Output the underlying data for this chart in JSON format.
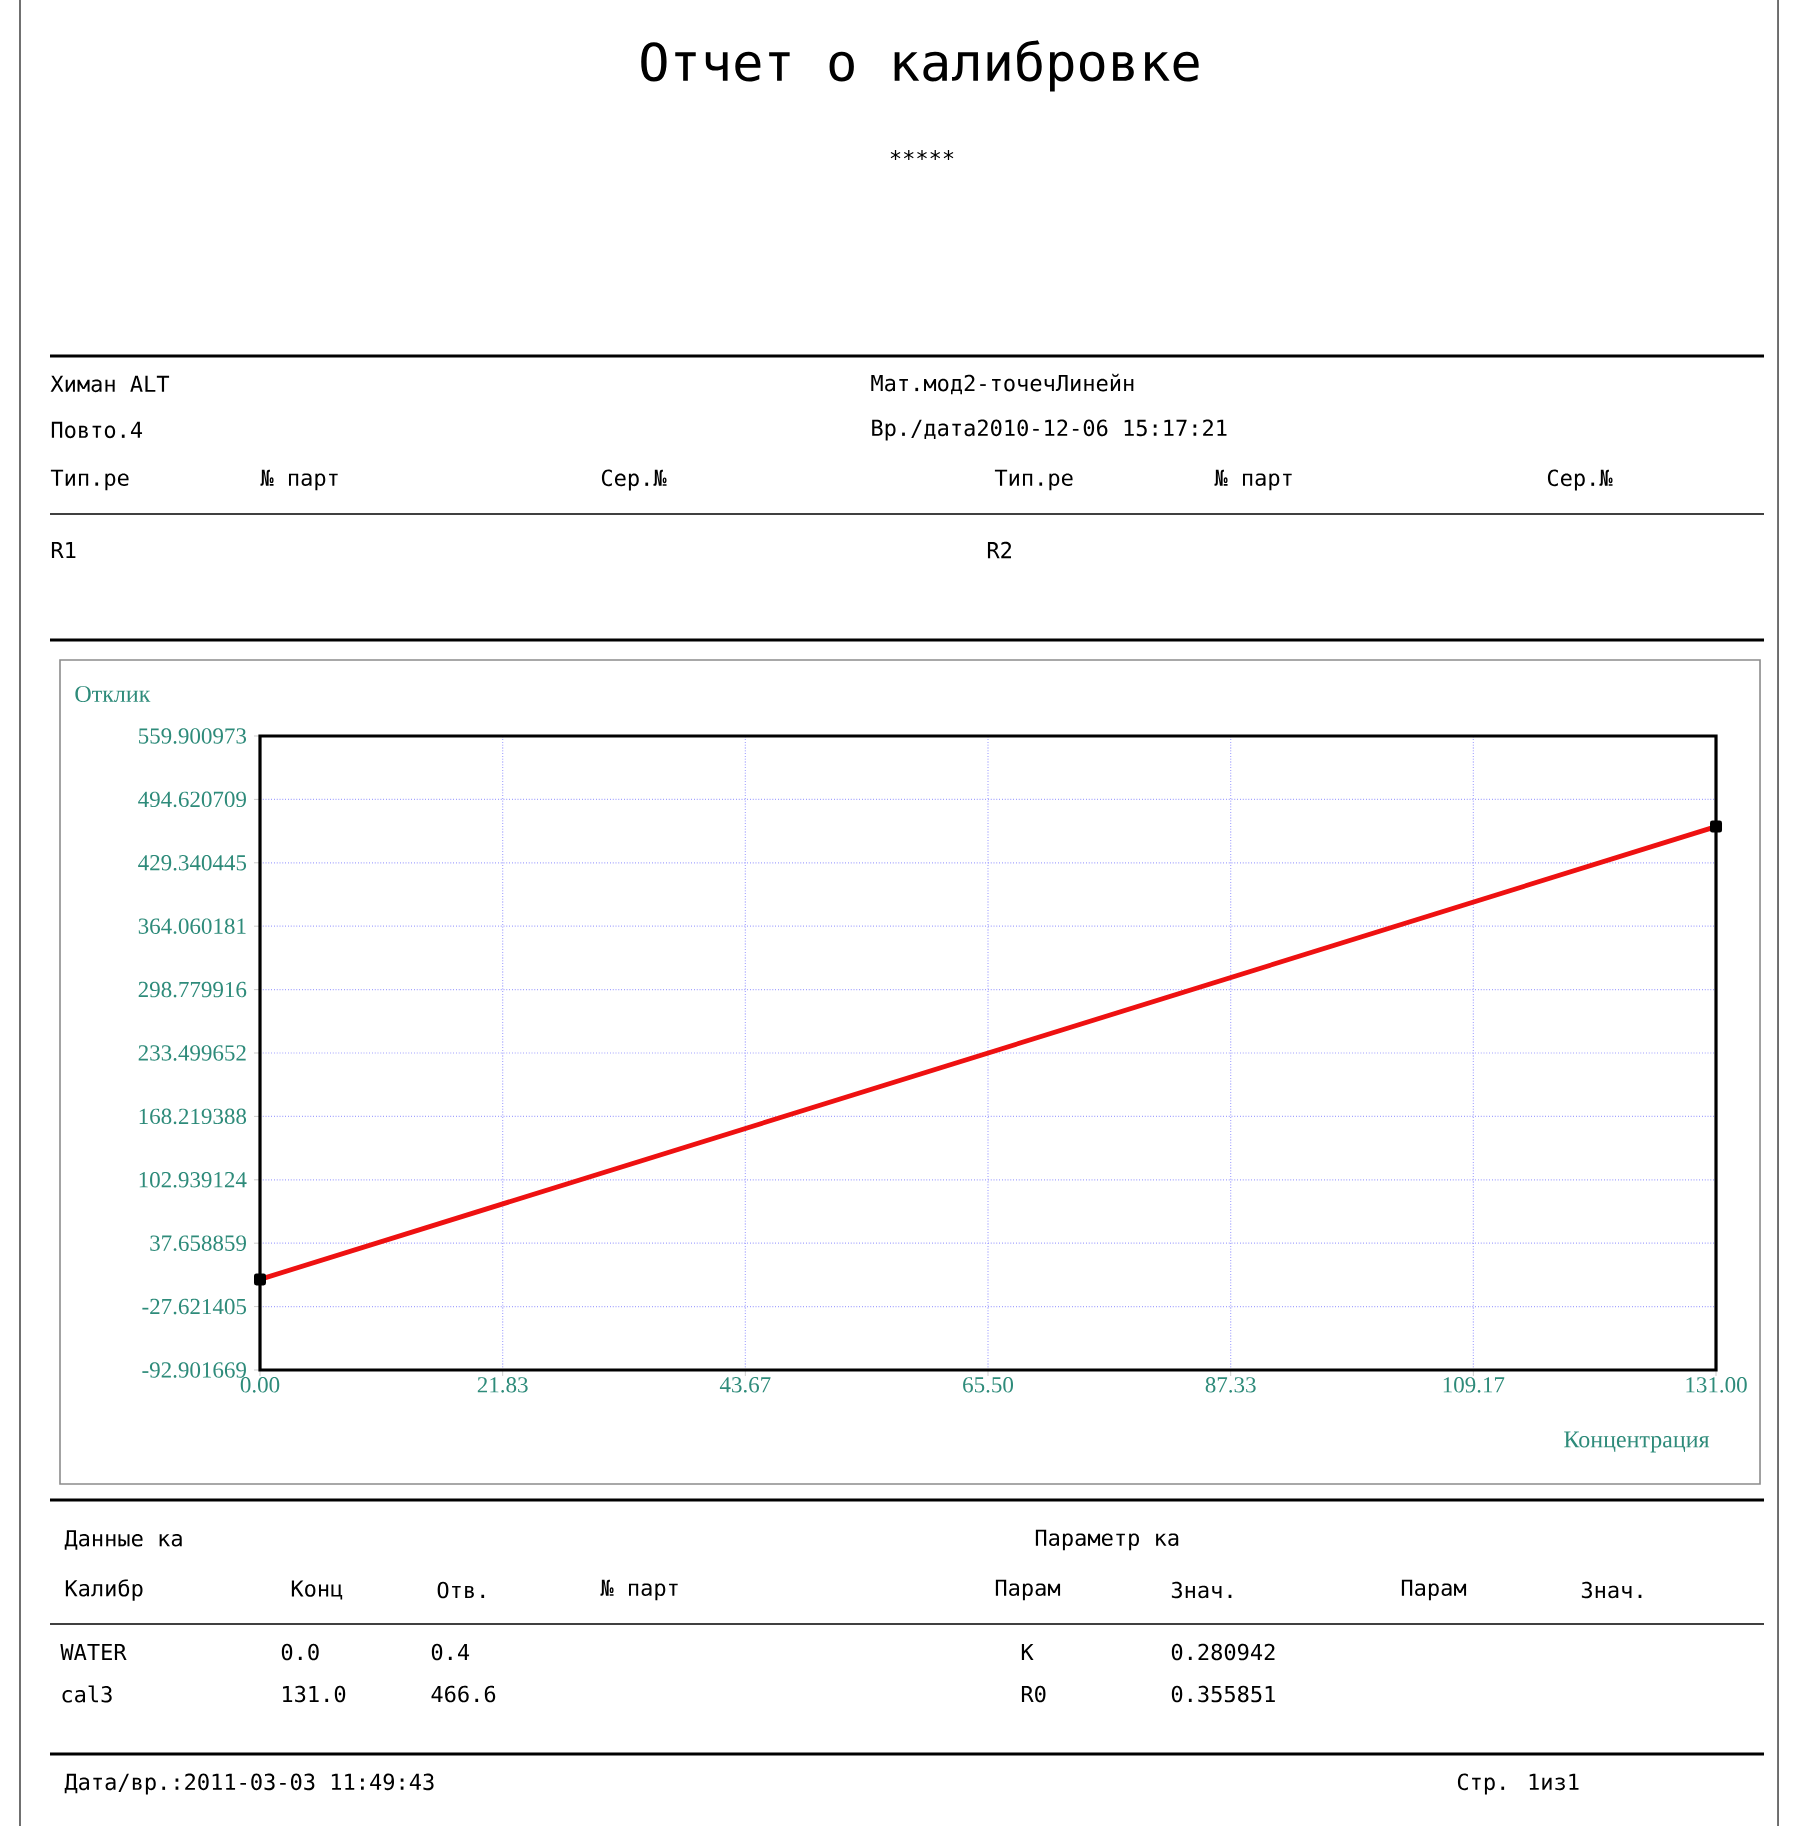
{
  "chart_data": {
    "type": "line",
    "title": "Отчет о калибровке",
    "subtitle": "∗∗∗∗∗",
    "xlabel": "Концентрация",
    "ylabel": "Отклик",
    "series": [
      {
        "color": "#ee1111",
        "x": [
          0,
          131
        ],
        "values": [
          0.4,
          466.6
        ]
      }
    ],
    "marker": "square",
    "grid": true,
    "xlim": [
      0,
      131
    ],
    "xticks": [
      {
        "value": 0,
        "label": "0.00"
      },
      {
        "value": 21.8333,
        "label": "21.83"
      },
      {
        "value": 43.6667,
        "label": "43.67"
      },
      {
        "value": 65.5,
        "label": "65.50"
      },
      {
        "value": 87.3333,
        "label": "87.33"
      },
      {
        "value": 109.1667,
        "label": "109.17"
      },
      {
        "value": 131,
        "label": "131.00"
      }
    ],
    "ylim": [
      -92.901669,
      559.900973
    ],
    "yticks": [
      -92.901669,
      -27.621405,
      37.658859,
      102.939124,
      168.219388,
      233.499652,
      298.779916,
      364.060181,
      429.340445,
      494.620709,
      559.900973
    ],
    "annotations": [
      "Химан ALT",
      "Повто.4",
      "Тип.ре",
      "№ парт",
      "Сер.№",
      "Мат.мод2-точечЛинейн",
      "Вр./дата2010-12-06 15:17:21",
      "Тип.ре",
      "№ парт",
      "Сер.№",
      "R1",
      "R2",
      "Данные ка",
      "Параметр ка",
      "Калибр",
      "Конц",
      "Отв.",
      "№ парт",
      "Парам",
      "Знач.",
      "Парам",
      "Знач.",
      "WATER",
      "0.0",
      "0.4",
      "K",
      "0.280942",
      "cal3",
      "131.0",
      "466.6",
      "R0",
      "0.355851",
      "Дата/вр.:2011-03-03 11:49:43",
      "Стр. 1из1"
    ]
  }
}
